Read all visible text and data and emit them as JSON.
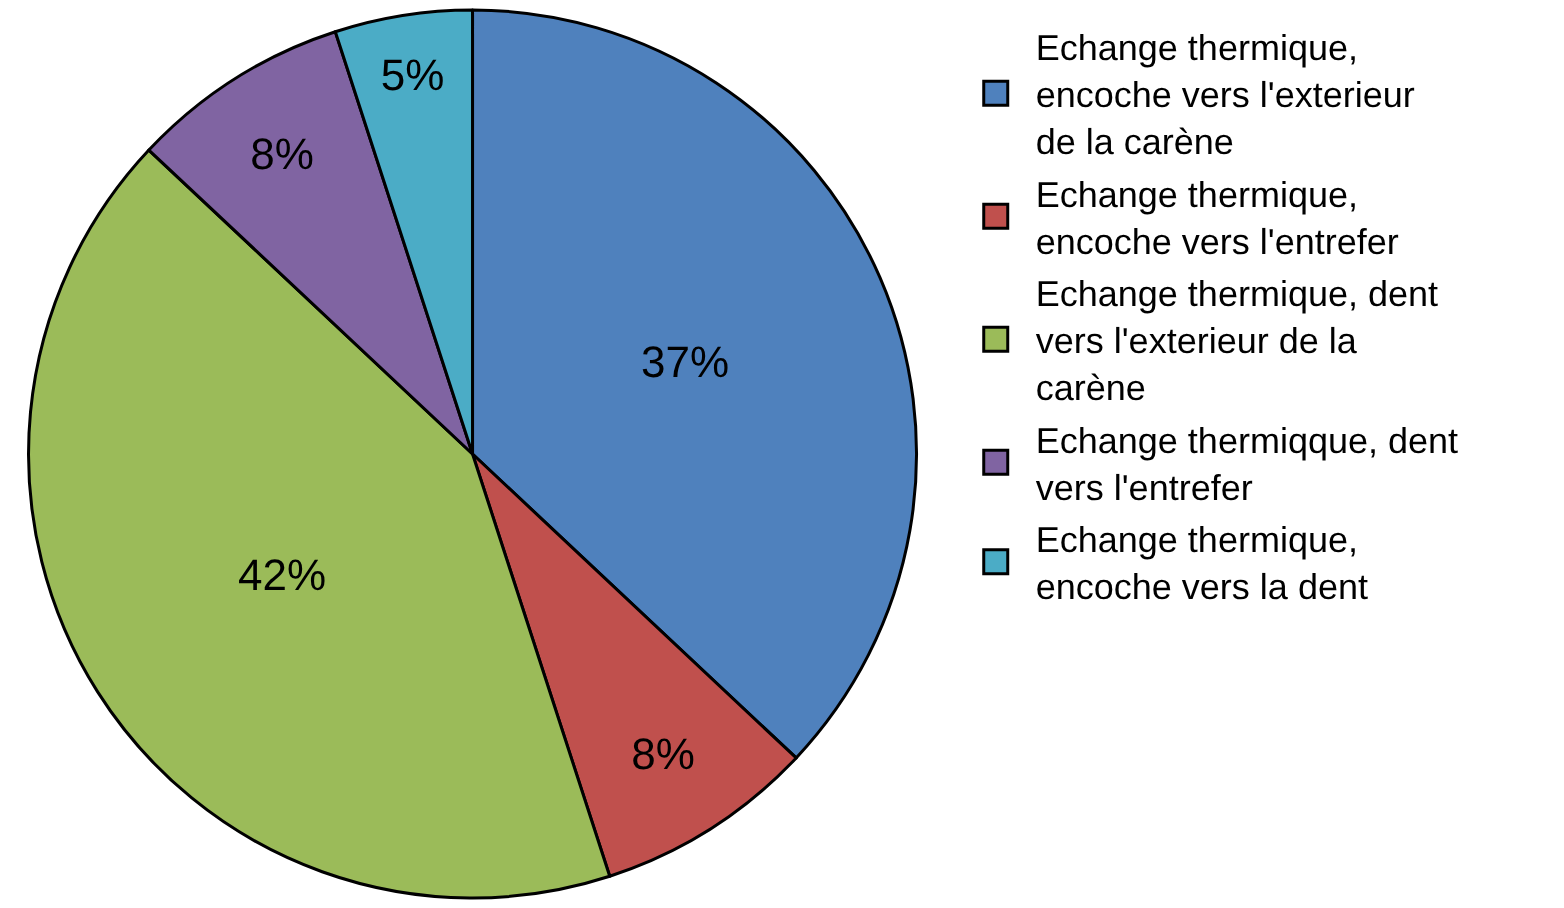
{
  "chart_data": {
    "type": "pie",
    "categories": [
      "Echange thermique, encoche vers l'exterieur de la carène",
      "Echange thermique, encoche vers l'entrefer",
      "Echange thermique, dent vers l'exterieur de la carène",
      "Echange thermiqque, dent vers l'entrefer",
      "Echange thermique, encoche vers la dent"
    ],
    "values": [
      37,
      8,
      42,
      8,
      5
    ],
    "value_labels": [
      "37%",
      "8%",
      "42%",
      "8%",
      "5%"
    ],
    "colors": [
      "#4f81bd",
      "#c0504d",
      "#9bbb59",
      "#8064a2",
      "#4bacc6"
    ],
    "legend": "right"
  }
}
